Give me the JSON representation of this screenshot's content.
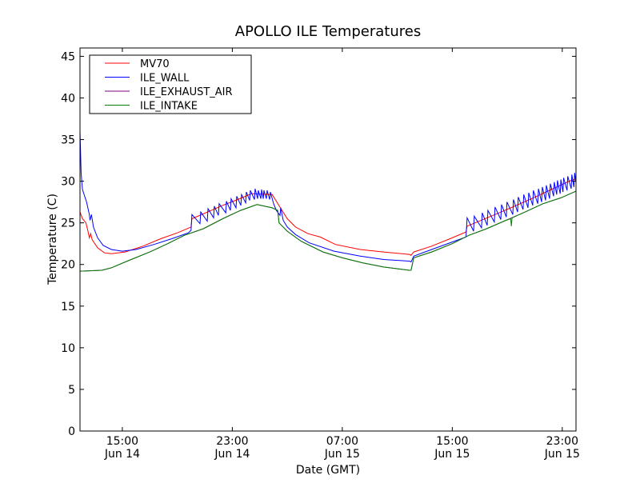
{
  "chart_data": {
    "type": "line",
    "title": "APOLLO ILE Temperatures",
    "xlabel": "Date (GMT)",
    "ylabel": "Temperature (C)",
    "x_units": "hours since Jun 14 00:00 GMT",
    "xlim": [
      11.92,
      48.0
    ],
    "ylim": [
      0,
      46
    ],
    "yticks": [
      0,
      5,
      10,
      15,
      20,
      25,
      30,
      35,
      40,
      45
    ],
    "xticks": [
      {
        "value": 15,
        "time": "15:00",
        "date": "Jun 14"
      },
      {
        "value": 23,
        "time": "23:00",
        "date": "Jun 14"
      },
      {
        "value": 31,
        "time": "07:00",
        "date": "Jun 15"
      },
      {
        "value": 39,
        "time": "15:00",
        "date": "Jun 15"
      },
      {
        "value": 47,
        "time": "23:00",
        "date": "Jun 15"
      }
    ],
    "grid": false,
    "legend_position": "top-left",
    "series": [
      {
        "name": "MV70",
        "color": "#ff0000",
        "points": [
          [
            11.92,
            26.3
          ],
          [
            12.1,
            25.5
          ],
          [
            12.35,
            25.0
          ],
          [
            12.5,
            24.0
          ],
          [
            12.6,
            23.2
          ],
          [
            12.7,
            23.7
          ],
          [
            12.8,
            23.0
          ],
          [
            13.2,
            22.0
          ],
          [
            13.7,
            21.4
          ],
          [
            14.2,
            21.3
          ],
          [
            15.2,
            21.5
          ],
          [
            16.5,
            22.2
          ],
          [
            17.8,
            23.1
          ],
          [
            19.0,
            23.8
          ],
          [
            20.0,
            24.5
          ],
          [
            20.06,
            25.5
          ],
          [
            21.2,
            26.3
          ],
          [
            22.3,
            27.1
          ],
          [
            23.4,
            27.8
          ],
          [
            24.4,
            28.5
          ],
          [
            25.9,
            28.4
          ],
          [
            26.2,
            27.6
          ],
          [
            26.5,
            26.8
          ],
          [
            27.0,
            25.5
          ],
          [
            27.6,
            24.5
          ],
          [
            28.5,
            23.7
          ],
          [
            29.4,
            23.3
          ],
          [
            30.5,
            22.4
          ],
          [
            32.3,
            21.8
          ],
          [
            34.0,
            21.5
          ],
          [
            35.9,
            21.2
          ],
          [
            36.0,
            21.1
          ],
          [
            36.2,
            21.5
          ],
          [
            37.5,
            22.2
          ],
          [
            39.0,
            23.2
          ],
          [
            40.0,
            23.9
          ],
          [
            40.08,
            24.6
          ],
          [
            42.7,
            26.4
          ],
          [
            44.9,
            28.0
          ],
          [
            46.2,
            29.0
          ],
          [
            47.5,
            30.0
          ],
          [
            48.0,
            30.3
          ]
        ]
      },
      {
        "name": "ILE_WALL",
        "color": "#0000ff",
        "points": [
          [
            11.92,
            36.0
          ],
          [
            12.0,
            31.0
          ],
          [
            12.1,
            29.0
          ],
          [
            12.4,
            27.5
          ],
          [
            12.6,
            26.0
          ],
          [
            12.65,
            25.3
          ],
          [
            12.75,
            26.0
          ],
          [
            12.9,
            24.5
          ],
          [
            13.2,
            23.2
          ],
          [
            13.6,
            22.3
          ],
          [
            14.2,
            21.8
          ],
          [
            15.0,
            21.6
          ],
          [
            16.0,
            21.8
          ],
          [
            17.3,
            22.4
          ],
          [
            18.6,
            23.1
          ],
          [
            19.8,
            23.8
          ],
          [
            20.0,
            24.1
          ],
          [
            20.06,
            26.0
          ],
          [
            20.65,
            24.9
          ],
          [
            20.7,
            26.3
          ],
          [
            21.18,
            25.2
          ],
          [
            21.23,
            26.7
          ],
          [
            21.64,
            25.6
          ],
          [
            21.69,
            27.0
          ],
          [
            21.99,
            25.9
          ],
          [
            22.04,
            27.3
          ],
          [
            22.52,
            26.2
          ],
          [
            22.57,
            27.6
          ],
          [
            22.86,
            26.5
          ],
          [
            22.91,
            27.9
          ],
          [
            23.27,
            26.8
          ],
          [
            23.32,
            28.2
          ],
          [
            23.62,
            27.1
          ],
          [
            23.67,
            28.4
          ],
          [
            23.97,
            27.4
          ],
          [
            24.02,
            28.7
          ],
          [
            24.26,
            27.7
          ],
          [
            24.31,
            28.9
          ],
          [
            24.61,
            27.8
          ],
          [
            24.66,
            29.1
          ],
          [
            24.84,
            27.9
          ],
          [
            24.89,
            28.9
          ],
          [
            25.08,
            27.9
          ],
          [
            25.13,
            29.0
          ],
          [
            25.25,
            27.9
          ],
          [
            25.3,
            28.9
          ],
          [
            25.48,
            27.9
          ],
          [
            25.53,
            28.9
          ],
          [
            25.72,
            27.8
          ],
          [
            25.77,
            28.7
          ],
          [
            26.0,
            27.3
          ],
          [
            26.2,
            26.5
          ],
          [
            26.47,
            25.9
          ],
          [
            26.52,
            26.8
          ],
          [
            26.7,
            25.3
          ],
          [
            27.0,
            24.5
          ],
          [
            27.6,
            23.6
          ],
          [
            28.6,
            22.6
          ],
          [
            30.4,
            21.6
          ],
          [
            32.3,
            21.0
          ],
          [
            34.0,
            20.6
          ],
          [
            35.9,
            20.4
          ],
          [
            36.0,
            20.3
          ],
          [
            36.2,
            21.0
          ],
          [
            37.5,
            21.8
          ],
          [
            39.0,
            22.7
          ],
          [
            40.0,
            23.3
          ],
          [
            40.08,
            25.6
          ],
          [
            40.55,
            24.0
          ],
          [
            40.6,
            25.8
          ],
          [
            41.13,
            24.4
          ],
          [
            41.18,
            26.2
          ],
          [
            41.54,
            24.7
          ],
          [
            41.59,
            26.5
          ],
          [
            42.06,
            25.1
          ],
          [
            42.11,
            26.9
          ],
          [
            42.53,
            25.4
          ],
          [
            42.58,
            27.2
          ],
          [
            42.93,
            25.7
          ],
          [
            42.98,
            27.5
          ],
          [
            43.4,
            26.0
          ],
          [
            43.45,
            27.8
          ],
          [
            43.75,
            26.3
          ],
          [
            43.8,
            28.1
          ],
          [
            44.15,
            26.6
          ],
          [
            44.2,
            28.4
          ],
          [
            44.51,
            26.8
          ],
          [
            44.56,
            28.6
          ],
          [
            44.85,
            27.1
          ],
          [
            44.9,
            28.9
          ],
          [
            45.22,
            27.3
          ],
          [
            45.27,
            29.1
          ],
          [
            45.5,
            27.5
          ],
          [
            45.55,
            29.3
          ],
          [
            45.79,
            27.7
          ],
          [
            45.84,
            29.5
          ],
          [
            46.08,
            27.9
          ],
          [
            46.13,
            29.7
          ],
          [
            46.37,
            28.2
          ],
          [
            46.42,
            29.9
          ],
          [
            46.6,
            28.4
          ],
          [
            46.65,
            30.1
          ],
          [
            46.85,
            28.5
          ],
          [
            46.9,
            30.2
          ],
          [
            47.05,
            28.7
          ],
          [
            47.1,
            30.4
          ],
          [
            47.35,
            28.9
          ],
          [
            47.4,
            30.6
          ],
          [
            47.65,
            29.1
          ],
          [
            47.7,
            30.8
          ],
          [
            47.85,
            29.3
          ],
          [
            47.9,
            31.0
          ],
          [
            48.0,
            29.8
          ]
        ]
      },
      {
        "name": "ILE_EXHAUST_AIR",
        "color": "#800080",
        "points": [
          [
            11.92,
            19.2
          ],
          [
            13.5,
            19.3
          ],
          [
            14.2,
            19.6
          ],
          [
            15.5,
            20.5
          ],
          [
            17.0,
            21.5
          ],
          [
            18.3,
            22.5
          ],
          [
            19.5,
            23.5
          ],
          [
            20.9,
            24.3
          ],
          [
            22.3,
            25.5
          ],
          [
            23.6,
            26.5
          ],
          [
            24.8,
            27.2
          ],
          [
            25.9,
            26.8
          ],
          [
            26.3,
            26.5
          ],
          [
            26.4,
            25.0
          ],
          [
            27.0,
            24.0
          ],
          [
            28.0,
            22.8
          ],
          [
            29.6,
            21.5
          ],
          [
            31.0,
            20.8
          ],
          [
            32.5,
            20.2
          ],
          [
            34.0,
            19.7
          ],
          [
            35.9,
            19.3
          ],
          [
            36.0,
            19.3
          ],
          [
            36.2,
            20.8
          ],
          [
            37.5,
            21.5
          ],
          [
            39.0,
            22.5
          ],
          [
            40.2,
            23.5
          ],
          [
            41.5,
            24.3
          ],
          [
            42.9,
            25.3
          ],
          [
            44.3,
            26.3
          ],
          [
            45.6,
            27.3
          ],
          [
            46.9,
            28.0
          ],
          [
            48.0,
            28.8
          ]
        ]
      },
      {
        "name": "ILE_INTAKE",
        "color": "#008000",
        "points": [
          [
            11.92,
            19.2
          ],
          [
            13.5,
            19.3
          ],
          [
            14.2,
            19.6
          ],
          [
            15.5,
            20.5
          ],
          [
            17.0,
            21.5
          ],
          [
            18.3,
            22.5
          ],
          [
            19.5,
            23.5
          ],
          [
            20.9,
            24.3
          ],
          [
            22.3,
            25.5
          ],
          [
            23.6,
            26.5
          ],
          [
            24.8,
            27.2
          ],
          [
            25.9,
            26.8
          ],
          [
            26.3,
            26.5
          ],
          [
            26.4,
            25.0
          ],
          [
            27.0,
            24.0
          ],
          [
            28.0,
            22.8
          ],
          [
            29.6,
            21.5
          ],
          [
            31.0,
            20.8
          ],
          [
            32.5,
            20.2
          ],
          [
            34.0,
            19.7
          ],
          [
            35.9,
            19.3
          ],
          [
            36.0,
            19.3
          ],
          [
            36.2,
            20.8
          ],
          [
            37.5,
            21.5
          ],
          [
            39.0,
            22.5
          ],
          [
            40.2,
            23.5
          ],
          [
            41.5,
            24.3
          ],
          [
            42.9,
            25.3
          ],
          [
            43.25,
            25.5
          ],
          [
            43.3,
            24.6
          ],
          [
            43.35,
            25.6
          ],
          [
            44.3,
            26.3
          ],
          [
            45.6,
            27.3
          ],
          [
            46.9,
            28.0
          ],
          [
            48.0,
            28.8
          ]
        ]
      }
    ]
  }
}
